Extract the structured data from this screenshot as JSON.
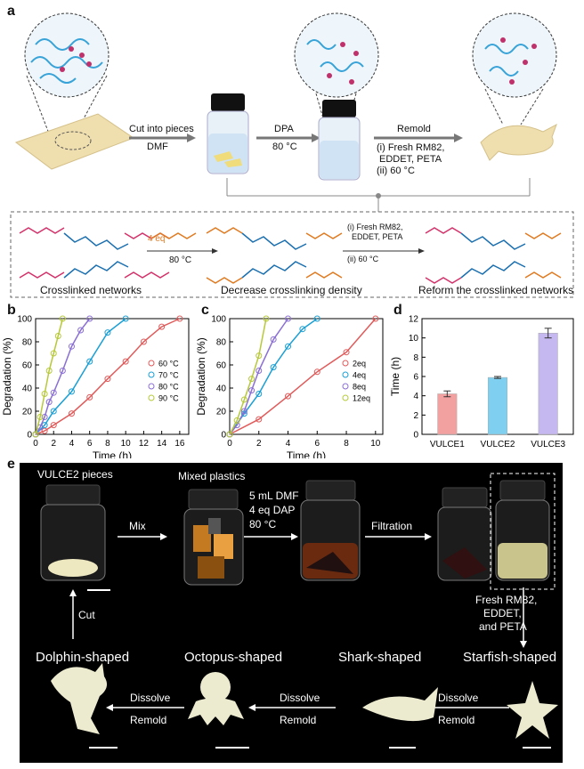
{
  "panel_a": {
    "letter": "a",
    "step1_top": "Cut into pieces",
    "step1_bottom": "DMF",
    "step2_top": "DPA",
    "step2_bottom": "80 °C",
    "step3_top": "Remold",
    "step3_lines": [
      "(i) Fresh RM82,",
      "EDDET,  PETA",
      "(ii) 60 °C"
    ],
    "reagent": "4 eq",
    "reagent_temp": "80 °C",
    "reform_lines": [
      "(i) Fresh RM82,",
      "EDDET,  PETA",
      "(ii) 60 °C"
    ],
    "captions": [
      "Crosslinked networks",
      "Decrease crosslinking density",
      "Reform the crosslinked networks"
    ]
  },
  "panel_b": {
    "letter": "b",
    "legend": [
      "60 °C",
      "70 °C",
      "80 °C",
      "90 °C"
    ]
  },
  "panel_c": {
    "letter": "c",
    "legend": [
      "2eq",
      "4eq",
      "8eq",
      "12eq"
    ]
  },
  "panel_d": {
    "letter": "d"
  },
  "panel_e": {
    "letter": "e",
    "labels": {
      "pieces": "VULCE2 pieces",
      "mixed": "Mixed plastics",
      "mix": "Mix",
      "cond": [
        "5 mL DMF",
        "4 eq DAP",
        "80 °C"
      ],
      "filtration": "Filtration",
      "fresh": [
        "Fresh RM82,",
        "EDDET,",
        "and PETA"
      ],
      "cut": "Cut",
      "dolphin": "Dolphin-shaped",
      "octopus": "Octopus-shaped",
      "shark": "Shark-shaped",
      "starfish": "Starfish-shaped",
      "dissolve": "Dissolve",
      "remold": "Remold"
    }
  },
  "chart_data": [
    {
      "type": "scatter",
      "title": "",
      "xlabel": "Time (h)",
      "ylabel": "Degradation (%)",
      "xlim": [
        0,
        17
      ],
      "ylim": [
        0,
        100
      ],
      "xticks": [
        0,
        2,
        4,
        6,
        8,
        10,
        12,
        14,
        16
      ],
      "yticks": [
        0,
        20,
        40,
        60,
        80,
        100
      ],
      "legend_position": "center-right",
      "series": [
        {
          "name": "60 °C",
          "color": "#e05a5a",
          "x": [
            0,
            1,
            2,
            4,
            6,
            8,
            10,
            12,
            14,
            16
          ],
          "y": [
            0,
            3,
            8,
            18,
            32,
            48,
            63,
            80,
            93,
            100
          ]
        },
        {
          "name": "70 °C",
          "color": "#1a9fd4",
          "x": [
            0,
            1,
            2,
            4,
            6,
            8,
            10
          ],
          "y": [
            0,
            8,
            20,
            37,
            63,
            88,
            100
          ]
        },
        {
          "name": "80 °C",
          "color": "#8a6fd4",
          "x": [
            0,
            0.5,
            1,
            1.5,
            2,
            3,
            4,
            5,
            6
          ],
          "y": [
            0,
            6,
            15,
            28,
            36,
            55,
            76,
            90,
            100
          ]
        },
        {
          "name": "90 °C",
          "color": "#b7c93a",
          "x": [
            0,
            0.5,
            1,
            1.5,
            2,
            2.5,
            3
          ],
          "y": [
            0,
            15,
            35,
            55,
            70,
            85,
            100
          ]
        }
      ]
    },
    {
      "type": "scatter",
      "title": "",
      "xlabel": "Time (h)",
      "ylabel": "Degradation (%)",
      "xlim": [
        0,
        10.5
      ],
      "ylim": [
        0,
        100
      ],
      "xticks": [
        0,
        2,
        4,
        6,
        8,
        10
      ],
      "yticks": [
        0,
        20,
        40,
        60,
        80,
        100
      ],
      "legend_position": "center-right",
      "series": [
        {
          "name": "2eq",
          "color": "#e05a5a",
          "x": [
            0,
            2,
            4,
            6,
            8,
            10
          ],
          "y": [
            0,
            13,
            33,
            54,
            71,
            100
          ]
        },
        {
          "name": "4eq",
          "color": "#1a9fd4",
          "x": [
            0,
            1,
            2,
            3,
            4,
            5,
            6
          ],
          "y": [
            0,
            18,
            35,
            58,
            76,
            91,
            100
          ]
        },
        {
          "name": "8eq",
          "color": "#8a6fd4",
          "x": [
            0,
            0.5,
            1,
            1.5,
            2,
            3,
            4
          ],
          "y": [
            0,
            8,
            20,
            38,
            55,
            82,
            100
          ]
        },
        {
          "name": "12eq",
          "color": "#b7c93a",
          "x": [
            0,
            0.5,
            1,
            1.5,
            2,
            2.5
          ],
          "y": [
            0,
            12,
            30,
            48,
            68,
            100
          ]
        }
      ]
    },
    {
      "type": "bar",
      "title": "",
      "xlabel": "",
      "ylabel": "Time (h)",
      "ylim": [
        0,
        12
      ],
      "yticks": [
        0,
        2,
        4,
        6,
        8,
        10,
        12
      ],
      "categories": [
        "VULCE1",
        "VULCE2",
        "VULCE3"
      ],
      "values": [
        4.2,
        5.9,
        10.5
      ],
      "errors": [
        0.3,
        0.1,
        0.5
      ],
      "colors": [
        "#f2a0a0",
        "#7fd0f0",
        "#c5b8f0"
      ]
    }
  ]
}
